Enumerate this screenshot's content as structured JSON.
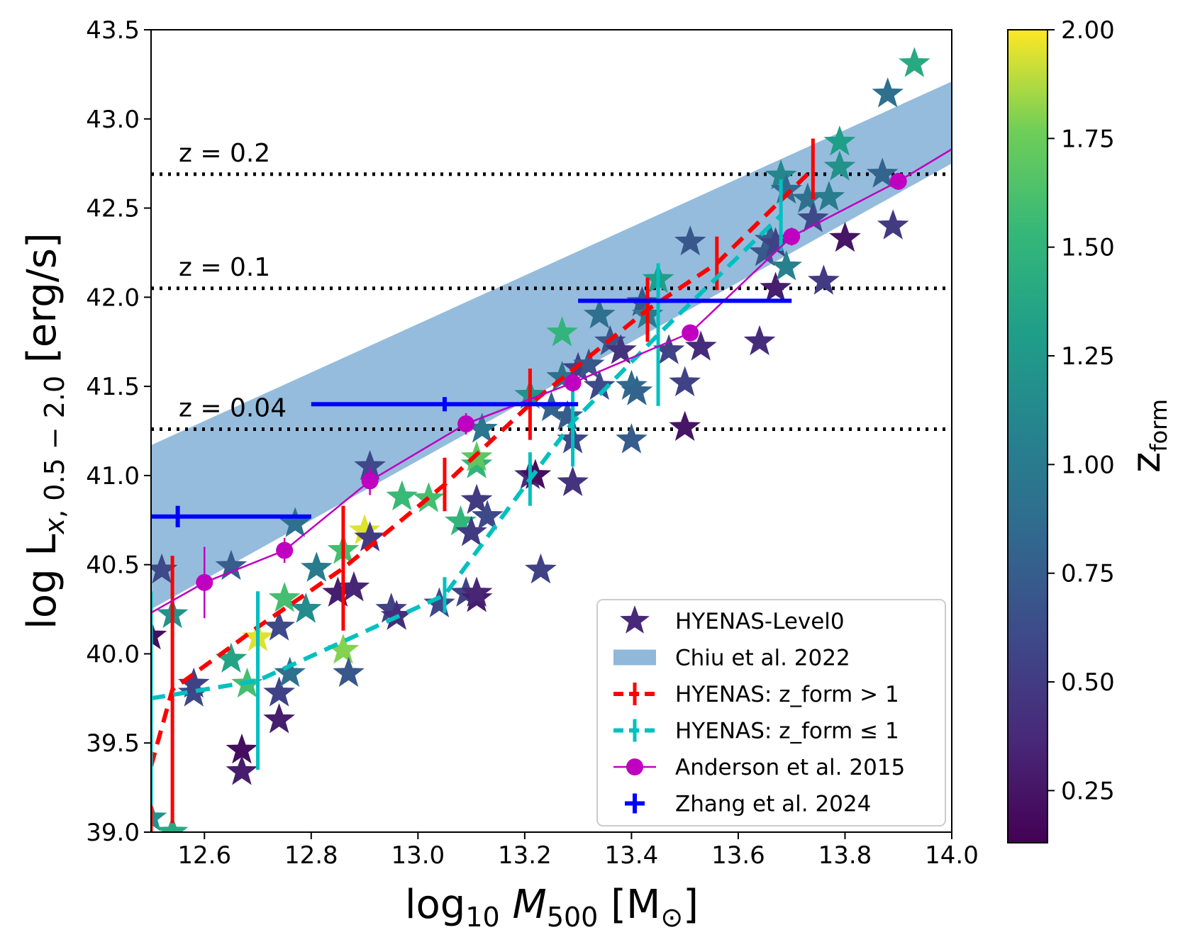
{
  "chart_data": {
    "type": "scatter",
    "title": "",
    "xlabel": "log10 M500 [M⊙]",
    "ylabel": "log  Lx, 0.5 − 2.0 [erg/s]",
    "xlim": [
      12.5,
      14.0
    ],
    "ylim": [
      39.0,
      43.5
    ],
    "grid": false,
    "legend_position": "lower-right",
    "x_ticks": [
      "12.6",
      "12.8",
      "13.0",
      "13.2",
      "13.4",
      "13.6",
      "13.8",
      "14.0"
    ],
    "y_ticks": [
      "39.0",
      "39.5",
      "40.0",
      "40.5",
      "41.0",
      "41.5",
      "42.0",
      "42.5",
      "43.0",
      "43.5"
    ],
    "colorbar": {
      "label": "zform",
      "range": [
        0.13,
        2.0
      ],
      "ticks": [
        "0.25",
        "0.50",
        "0.75",
        "1.00",
        "1.25",
        "1.50",
        "1.75",
        "2.00"
      ],
      "colormap": "viridis"
    },
    "reference_lines": [
      {
        "label": "z = 0.2",
        "y": 42.69
      },
      {
        "label": "z = 0.1",
        "y": 42.05
      },
      {
        "label": "z = 0.04",
        "y": 41.26
      }
    ],
    "legend": [
      {
        "key": "stars",
        "label": "HYENAS-Level0"
      },
      {
        "key": "band",
        "label": "Chiu et al. 2022"
      },
      {
        "key": "red",
        "label": "HYENAS: z_form > 1"
      },
      {
        "key": "cyan",
        "label": "HYENAS: z_form ≤ 1"
      },
      {
        "key": "anderson",
        "label": "Anderson et al. 2015"
      },
      {
        "key": "zhang",
        "label": "Zhang et al. 2024"
      }
    ],
    "chiu_band": {
      "name": "Chiu et al. 2022",
      "color": "#8fb8da",
      "x": [
        12.5,
        14.0
      ],
      "lower": [
        40.25,
        42.75
      ],
      "upper": [
        41.17,
        43.21
      ]
    },
    "series": [
      {
        "name": "HYENAS: z_form > 1",
        "color": "#ff0000",
        "x": [
          12.5,
          12.54,
          12.7,
          12.86,
          13.05,
          13.21,
          13.43,
          13.56,
          13.74
        ],
        "y": [
          39.37,
          39.8,
          40.15,
          40.48,
          40.95,
          41.4,
          41.93,
          42.19,
          42.72
        ],
        "yerr": [
          0.75,
          0.75,
          0.2,
          0.35,
          0.15,
          0.2,
          0.18,
          0.15,
          0.17
        ]
      },
      {
        "name": "HYENAS: z_form ≤ 1",
        "color": "#00c0c0",
        "x": [
          12.5,
          12.7,
          13.05,
          13.21,
          13.29,
          13.45,
          13.68
        ],
        "y": [
          39.75,
          39.85,
          40.33,
          40.98,
          41.3,
          41.79,
          42.46
        ],
        "yerr": [
          0.6,
          0.5,
          0.1,
          0.15,
          0.25,
          0.4,
          0.2
        ]
      },
      {
        "name": "Anderson et al. 2015",
        "color": "#c000c0",
        "x": [
          12.5,
          12.6,
          12.75,
          12.91,
          13.09,
          13.29,
          13.51,
          13.7,
          13.9,
          14.0
        ],
        "y": [
          40.23,
          40.4,
          40.58,
          40.97,
          41.29,
          41.52,
          41.8,
          42.34,
          42.65,
          42.83
        ],
        "yerr": [
          0,
          0.2,
          0.07,
          0.08,
          0.06,
          0.05,
          0.04,
          0.05,
          0.03,
          0
        ]
      },
      {
        "name": "Zhang et al. 2024",
        "color": "#0000ff",
        "x": [
          12.55,
          13.05,
          13.5
        ],
        "y": [
          40.77,
          41.4,
          41.98
        ],
        "xerr_low": [
          0.05,
          0.25,
          0.2
        ],
        "xerr_high": [
          0.25,
          0.25,
          0.2
        ],
        "yerr": [
          0.06,
          0.04,
          0
        ]
      }
    ],
    "stars": [
      {
        "x": 12.5,
        "y": 40.1,
        "z": 0.2
      },
      {
        "x": 12.5,
        "y": 39.08,
        "z": 1.2
      },
      {
        "x": 12.52,
        "y": 40.47,
        "z": 0.6
      },
      {
        "x": 12.54,
        "y": 40.22,
        "z": 1.2
      },
      {
        "x": 12.54,
        "y": 39.0,
        "z": 1.4
      },
      {
        "x": 12.58,
        "y": 39.78,
        "z": 0.6
      },
      {
        "x": 12.58,
        "y": 39.83,
        "z": 0.55
      },
      {
        "x": 12.65,
        "y": 39.97,
        "z": 1.35
      },
      {
        "x": 12.65,
        "y": 40.49,
        "z": 0.75
      },
      {
        "x": 12.67,
        "y": 39.46,
        "z": 0.2
      },
      {
        "x": 12.67,
        "y": 39.34,
        "z": 0.3
      },
      {
        "x": 12.68,
        "y": 39.83,
        "z": 1.6
      },
      {
        "x": 12.7,
        "y": 40.09,
        "z": 1.95
      },
      {
        "x": 12.74,
        "y": 39.78,
        "z": 0.55
      },
      {
        "x": 12.74,
        "y": 39.63,
        "z": 0.3
      },
      {
        "x": 12.74,
        "y": 40.15,
        "z": 0.6
      },
      {
        "x": 12.75,
        "y": 40.31,
        "z": 1.6
      },
      {
        "x": 12.76,
        "y": 39.89,
        "z": 0.9
      },
      {
        "x": 12.77,
        "y": 40.73,
        "z": 0.9
      },
      {
        "x": 12.79,
        "y": 40.25,
        "z": 1.15
      },
      {
        "x": 12.81,
        "y": 40.48,
        "z": 1.0
      },
      {
        "x": 12.85,
        "y": 40.34,
        "z": 0.3
      },
      {
        "x": 12.86,
        "y": 40.02,
        "z": 1.8
      },
      {
        "x": 12.86,
        "y": 40.58,
        "z": 1.6
      },
      {
        "x": 12.87,
        "y": 39.89,
        "z": 0.7
      },
      {
        "x": 12.88,
        "y": 40.37,
        "z": 0.35
      },
      {
        "x": 12.9,
        "y": 40.69,
        "z": 1.95
      },
      {
        "x": 12.91,
        "y": 40.65,
        "z": 0.5
      },
      {
        "x": 12.91,
        "y": 41.05,
        "z": 0.6
      },
      {
        "x": 12.95,
        "y": 40.25,
        "z": 0.55
      },
      {
        "x": 12.96,
        "y": 40.21,
        "z": 0.4
      },
      {
        "x": 12.97,
        "y": 40.88,
        "z": 1.55
      },
      {
        "x": 13.02,
        "y": 40.87,
        "z": 1.6
      },
      {
        "x": 13.04,
        "y": 40.28,
        "z": 0.6
      },
      {
        "x": 13.08,
        "y": 40.74,
        "z": 1.5
      },
      {
        "x": 13.09,
        "y": 40.34,
        "z": 0.55
      },
      {
        "x": 13.1,
        "y": 40.68,
        "z": 0.5
      },
      {
        "x": 13.11,
        "y": 40.86,
        "z": 0.5
      },
      {
        "x": 13.11,
        "y": 40.31,
        "z": 0.3
      },
      {
        "x": 13.11,
        "y": 40.34,
        "z": 0.35
      },
      {
        "x": 13.11,
        "y": 41.06,
        "z": 1.5
      },
      {
        "x": 13.11,
        "y": 41.1,
        "z": 1.7
      },
      {
        "x": 13.12,
        "y": 41.26,
        "z": 0.95
      },
      {
        "x": 13.13,
        "y": 40.77,
        "z": 0.6
      },
      {
        "x": 13.21,
        "y": 41.0,
        "z": 0.4
      },
      {
        "x": 13.21,
        "y": 41.45,
        "z": 1.2
      },
      {
        "x": 13.22,
        "y": 41.0,
        "z": 0.2
      },
      {
        "x": 13.23,
        "y": 40.47,
        "z": 0.55
      },
      {
        "x": 13.25,
        "y": 41.38,
        "z": 0.8
      },
      {
        "x": 13.27,
        "y": 41.8,
        "z": 1.5
      },
      {
        "x": 13.27,
        "y": 41.55,
        "z": 0.9
      },
      {
        "x": 13.28,
        "y": 41.33,
        "z": 0.75
      },
      {
        "x": 13.29,
        "y": 41.2,
        "z": 0.6
      },
      {
        "x": 13.29,
        "y": 40.96,
        "z": 0.45
      },
      {
        "x": 13.3,
        "y": 41.6,
        "z": 0.55
      },
      {
        "x": 13.32,
        "y": 41.62,
        "z": 0.7
      },
      {
        "x": 13.34,
        "y": 41.9,
        "z": 0.9
      },
      {
        "x": 13.34,
        "y": 41.5,
        "z": 0.6
      },
      {
        "x": 13.36,
        "y": 41.75,
        "z": 0.7
      },
      {
        "x": 13.38,
        "y": 41.7,
        "z": 0.45
      },
      {
        "x": 13.4,
        "y": 41.2,
        "z": 0.75
      },
      {
        "x": 13.4,
        "y": 41.5,
        "z": 0.85
      },
      {
        "x": 13.41,
        "y": 41.47,
        "z": 0.8
      },
      {
        "x": 13.42,
        "y": 41.97,
        "z": 0.7
      },
      {
        "x": 13.43,
        "y": 41.9,
        "z": 1.0
      },
      {
        "x": 13.45,
        "y": 42.1,
        "z": 1.3
      },
      {
        "x": 13.47,
        "y": 41.7,
        "z": 0.55
      },
      {
        "x": 13.5,
        "y": 41.52,
        "z": 0.55
      },
      {
        "x": 13.5,
        "y": 41.27,
        "z": 0.25
      },
      {
        "x": 13.51,
        "y": 42.31,
        "z": 0.7
      },
      {
        "x": 13.53,
        "y": 41.72,
        "z": 0.4
      },
      {
        "x": 13.64,
        "y": 41.75,
        "z": 0.4
      },
      {
        "x": 13.65,
        "y": 42.25,
        "z": 0.7
      },
      {
        "x": 13.66,
        "y": 42.32,
        "z": 0.75
      },
      {
        "x": 13.67,
        "y": 42.05,
        "z": 0.3
      },
      {
        "x": 13.67,
        "y": 42.3,
        "z": 0.55
      },
      {
        "x": 13.68,
        "y": 42.68,
        "z": 1.1
      },
      {
        "x": 13.69,
        "y": 42.17,
        "z": 1.05
      },
      {
        "x": 13.69,
        "y": 42.6,
        "z": 0.85
      },
      {
        "x": 13.73,
        "y": 42.55,
        "z": 0.9
      },
      {
        "x": 13.74,
        "y": 42.44,
        "z": 0.6
      },
      {
        "x": 13.76,
        "y": 42.09,
        "z": 0.5
      },
      {
        "x": 13.77,
        "y": 42.56,
        "z": 1.0
      },
      {
        "x": 13.79,
        "y": 42.73,
        "z": 1.2
      },
      {
        "x": 13.79,
        "y": 42.87,
        "z": 1.3
      },
      {
        "x": 13.8,
        "y": 42.33,
        "z": 0.25
      },
      {
        "x": 13.87,
        "y": 42.69,
        "z": 0.8
      },
      {
        "x": 13.88,
        "y": 43.14,
        "z": 0.9
      },
      {
        "x": 13.89,
        "y": 42.4,
        "z": 0.5
      },
      {
        "x": 13.93,
        "y": 43.31,
        "z": 1.4
      }
    ]
  }
}
